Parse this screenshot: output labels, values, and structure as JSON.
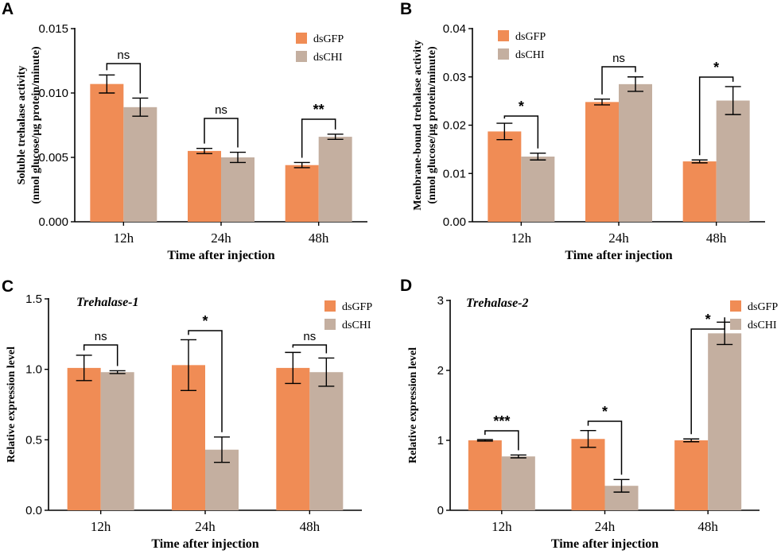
{
  "colors": {
    "dsGFP": "#F08C55",
    "dsCHI": "#C4AFA0",
    "axis": "#000000"
  },
  "chart_data": [
    {
      "panel_label": "A",
      "type": "bar",
      "title": "",
      "categories": [
        "12h",
        "24h",
        "48h"
      ],
      "series": [
        {
          "name": "dsGFP",
          "values": [
            0.0107,
            0.0055,
            0.0044
          ],
          "errors": [
            0.0007,
            0.0002,
            0.0002
          ]
        },
        {
          "name": "dsCHI",
          "values": [
            0.0089,
            0.005,
            0.0066
          ],
          "errors": [
            0.0007,
            0.0004,
            0.0002
          ]
        }
      ],
      "xlabel": "Time after injection",
      "ylabel_lines": [
        "Soluble trehalase activity",
        "(nmol glucose/μg protein/minute)"
      ],
      "ylim": [
        0,
        0.015
      ],
      "yticks": [
        "0.000",
        "0.005",
        "0.010",
        "0.015"
      ],
      "significance": [
        "ns",
        "ns",
        "**"
      ],
      "legend": [
        "dsGFP",
        "dsCHI"
      ]
    },
    {
      "panel_label": "B",
      "type": "bar",
      "title": "",
      "categories": [
        "12h",
        "24h",
        "48h"
      ],
      "series": [
        {
          "name": "dsGFP",
          "values": [
            0.0187,
            0.0248,
            0.0125
          ],
          "errors": [
            0.0017,
            0.0006,
            0.0003
          ]
        },
        {
          "name": "dsCHI",
          "values": [
            0.0135,
            0.0285,
            0.0251
          ],
          "errors": [
            0.0007,
            0.0015,
            0.0029
          ]
        }
      ],
      "xlabel": "Time after injection",
      "ylabel_lines": [
        "Membrane-bound trehalase activity",
        "(nmol glucose/μg protein/minute)"
      ],
      "ylim": [
        0,
        0.04
      ],
      "yticks": [
        "0.00",
        "0.01",
        "0.02",
        "0.03",
        "0.04"
      ],
      "significance": [
        "*",
        "ns",
        "*"
      ],
      "legend": [
        "dsGFP",
        "dsCHI"
      ]
    },
    {
      "panel_label": "C",
      "type": "bar",
      "title": "Trehalase-1",
      "categories": [
        "12h",
        "24h",
        "48h"
      ],
      "series": [
        {
          "name": "dsGFP",
          "values": [
            1.01,
            1.03,
            1.01
          ],
          "errors": [
            0.09,
            0.18,
            0.11
          ]
        },
        {
          "name": "dsCHI",
          "values": [
            0.98,
            0.43,
            0.98
          ],
          "errors": [
            0.01,
            0.09,
            0.1
          ]
        }
      ],
      "xlabel": "Time after injection",
      "ylabel_lines": [
        "Relative expression level"
      ],
      "ylim": [
        0,
        1.5
      ],
      "yticks": [
        "0.0",
        "0.5",
        "1.0",
        "1.5"
      ],
      "significance": [
        "ns",
        "*",
        "ns"
      ],
      "legend": [
        "dsGFP",
        "dsCHI"
      ]
    },
    {
      "panel_label": "D",
      "type": "bar",
      "title": "Trehalase-2",
      "categories": [
        "12h",
        "24h",
        "48h"
      ],
      "series": [
        {
          "name": "dsGFP",
          "values": [
            1.0,
            1.02,
            1.0
          ],
          "errors": [
            0.01,
            0.12,
            0.02
          ]
        },
        {
          "name": "dsCHI",
          "values": [
            0.77,
            0.35,
            2.53
          ],
          "errors": [
            0.02,
            0.09,
            0.16
          ]
        }
      ],
      "xlabel": "Time after injection",
      "ylabel_lines": [
        "Relative expression level"
      ],
      "ylim": [
        0,
        3
      ],
      "yticks": [
        "0",
        "1",
        "2",
        "3"
      ],
      "significance": [
        "***",
        "*",
        "*"
      ],
      "legend": [
        "dsGFP",
        "dsCHI"
      ]
    }
  ]
}
